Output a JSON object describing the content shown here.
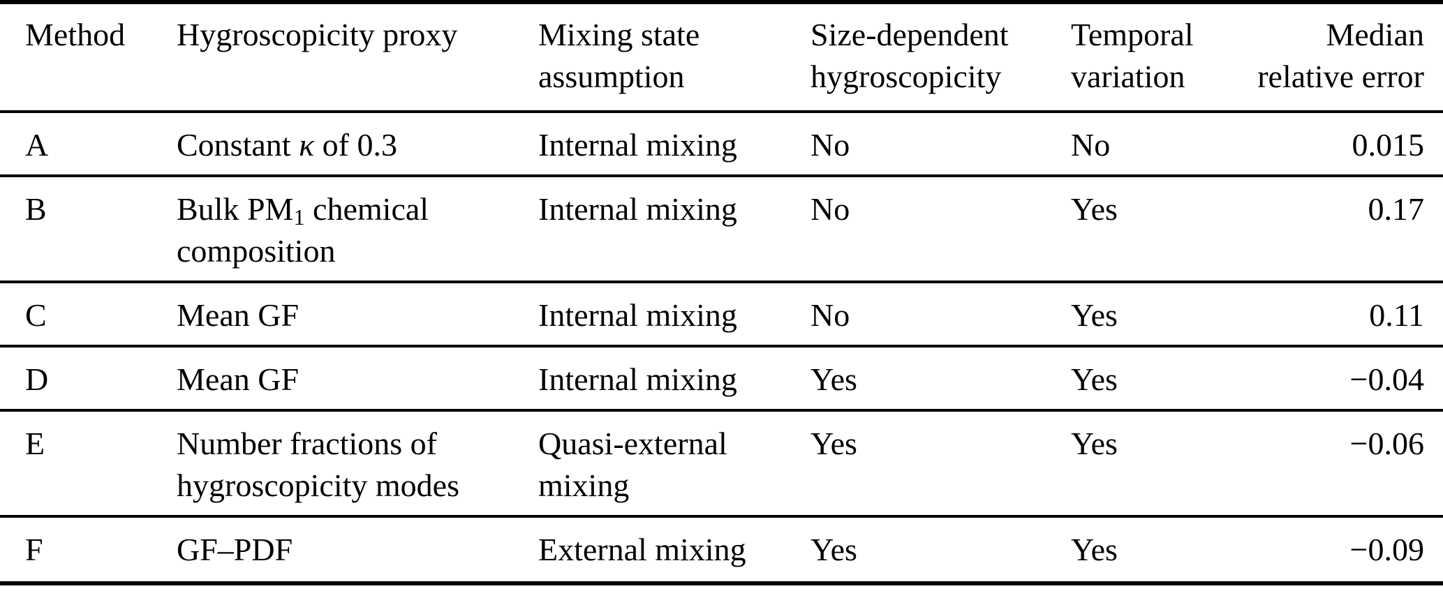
{
  "page": {
    "background_color": "#ffffff",
    "text_color": "#000000",
    "rule_color": "#000000"
  },
  "table": {
    "columns": [
      {
        "label": "Method",
        "align": "left"
      },
      {
        "label": "Hygroscopicity proxy",
        "align": "left"
      },
      {
        "label": "Mixing state assumption",
        "align": "left"
      },
      {
        "label": "Size-dependent hygroscopicity",
        "align": "left"
      },
      {
        "label": "Temporal variation",
        "align": "left"
      },
      {
        "label": "Median relative error",
        "align": "right"
      }
    ],
    "rows": [
      {
        "method": "A",
        "proxy": [
          {
            "text": "Constant "
          },
          {
            "text": "κ",
            "style": "italic"
          },
          {
            "text": " of 0.3"
          }
        ],
        "mixing_state": "Internal mixing",
        "size_dependent": "No",
        "temporal": "No",
        "median_relative_error": "0.015"
      },
      {
        "method": "B",
        "proxy": [
          {
            "text": "Bulk PM"
          },
          {
            "text": "1",
            "style": "subscript"
          },
          {
            "text": " chemical composition"
          }
        ],
        "mixing_state": "Internal mixing",
        "size_dependent": "No",
        "temporal": "Yes",
        "median_relative_error": "0.17"
      },
      {
        "method": "C",
        "proxy": [
          {
            "text": "Mean GF"
          }
        ],
        "mixing_state": "Internal mixing",
        "size_dependent": "No",
        "temporal": "Yes",
        "median_relative_error": "0.11"
      },
      {
        "method": "D",
        "proxy": [
          {
            "text": "Mean GF"
          }
        ],
        "mixing_state": "Internal mixing",
        "size_dependent": "Yes",
        "temporal": "Yes",
        "median_relative_error": "−0.04"
      },
      {
        "method": "E",
        "proxy": [
          {
            "text": "Number fractions of hygroscopicity modes"
          }
        ],
        "mixing_state": "Quasi-external mixing",
        "size_dependent": "Yes",
        "temporal": "Yes",
        "median_relative_error": "−0.06"
      },
      {
        "method": "F",
        "proxy": [
          {
            "text": "GF–PDF"
          }
        ],
        "mixing_state": "External mixing",
        "size_dependent": "Yes",
        "temporal": "Yes",
        "median_relative_error": "−0.09"
      }
    ]
  }
}
